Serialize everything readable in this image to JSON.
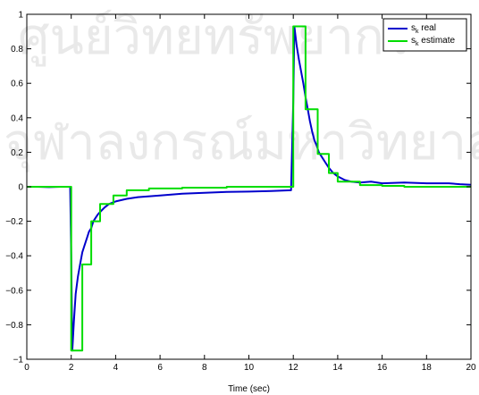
{
  "watermark": {
    "line1": "ศูนย์วิทยทรัพยากร",
    "line2": "จุฬาลงกรณ์มหาวิทยาลัย"
  },
  "chart_data": {
    "type": "line",
    "title": "",
    "xlabel": "Time (sec)",
    "ylabel": "",
    "xlim": [
      0,
      20
    ],
    "ylim": [
      -1,
      1
    ],
    "xticks": [
      0,
      2,
      4,
      6,
      8,
      10,
      12,
      14,
      16,
      18,
      20
    ],
    "yticks": [
      -1,
      -0.8,
      -0.6,
      -0.4,
      -0.2,
      0,
      0.2,
      0.4,
      0.6,
      0.8,
      1
    ],
    "xtick_labels": [
      "0",
      "2",
      "4",
      "6",
      "8",
      "10",
      "12",
      "14",
      "16",
      "18",
      "20"
    ],
    "ytick_labels": [
      "−1",
      "−0.8",
      "−0.6",
      "−0.4",
      "−0.2",
      "0",
      "0.2",
      "0.4",
      "0.6",
      "0.8",
      "1"
    ],
    "grid": false,
    "legend_position": "top-right",
    "series": [
      {
        "name": "s",
        "subscript": "k",
        "suffix": " real",
        "color": "#0000cc",
        "x": [
          0,
          0.5,
          1,
          1.5,
          1.95,
          2.0,
          2.05,
          2.12,
          2.2,
          2.3,
          2.4,
          2.5,
          2.6,
          2.7,
          2.8,
          2.9,
          3.0,
          3.1,
          3.2,
          3.35,
          3.5,
          3.7,
          4.0,
          4.5,
          5.0,
          6.0,
          7.0,
          8.0,
          9.0,
          10.0,
          11.0,
          11.9,
          12.0,
          12.05,
          12.15,
          12.25,
          12.35,
          12.45,
          12.55,
          12.65,
          12.75,
          12.85,
          12.95,
          13.05,
          13.15,
          13.3,
          13.45,
          13.6,
          13.8,
          14.0,
          14.3,
          14.6,
          15.0,
          15.5,
          16.0,
          17.0,
          18.0,
          19.0,
          19.5,
          20.0
        ],
        "y": [
          0.0,
          0.0,
          -0.002,
          0.0,
          0.0,
          -0.4,
          -0.95,
          -0.78,
          -0.62,
          -0.52,
          -0.45,
          -0.38,
          -0.34,
          -0.3,
          -0.26,
          -0.24,
          -0.2,
          -0.18,
          -0.16,
          -0.14,
          -0.12,
          -0.1,
          -0.085,
          -0.07,
          -0.06,
          -0.05,
          -0.04,
          -0.035,
          -0.03,
          -0.028,
          -0.025,
          -0.02,
          0.5,
          0.93,
          0.82,
          0.74,
          0.67,
          0.6,
          0.52,
          0.45,
          0.38,
          0.32,
          0.27,
          0.24,
          0.2,
          0.17,
          0.14,
          0.11,
          0.08,
          0.06,
          0.04,
          0.03,
          0.025,
          0.03,
          0.02,
          0.025,
          0.02,
          0.02,
          0.015,
          0.012
        ]
      },
      {
        "name": "s",
        "subscript": "k",
        "suffix": " estimate",
        "color": "#00dd00",
        "step": true,
        "x": [
          0,
          2.0,
          2.5,
          2.9,
          3.3,
          3.9,
          4.5,
          5.5,
          7.0,
          9.0,
          12.0,
          12.55,
          13.1,
          13.6,
          14.0,
          15.0,
          16.0,
          17.0,
          18.0,
          19.0,
          20.0
        ],
        "y": [
          0.0,
          -0.95,
          -0.45,
          -0.2,
          -0.1,
          -0.05,
          -0.02,
          -0.01,
          -0.005,
          0.0,
          0.93,
          0.45,
          0.19,
          0.08,
          0.03,
          0.01,
          0.005,
          0.0,
          0.0,
          0.0,
          0.0
        ]
      }
    ]
  }
}
